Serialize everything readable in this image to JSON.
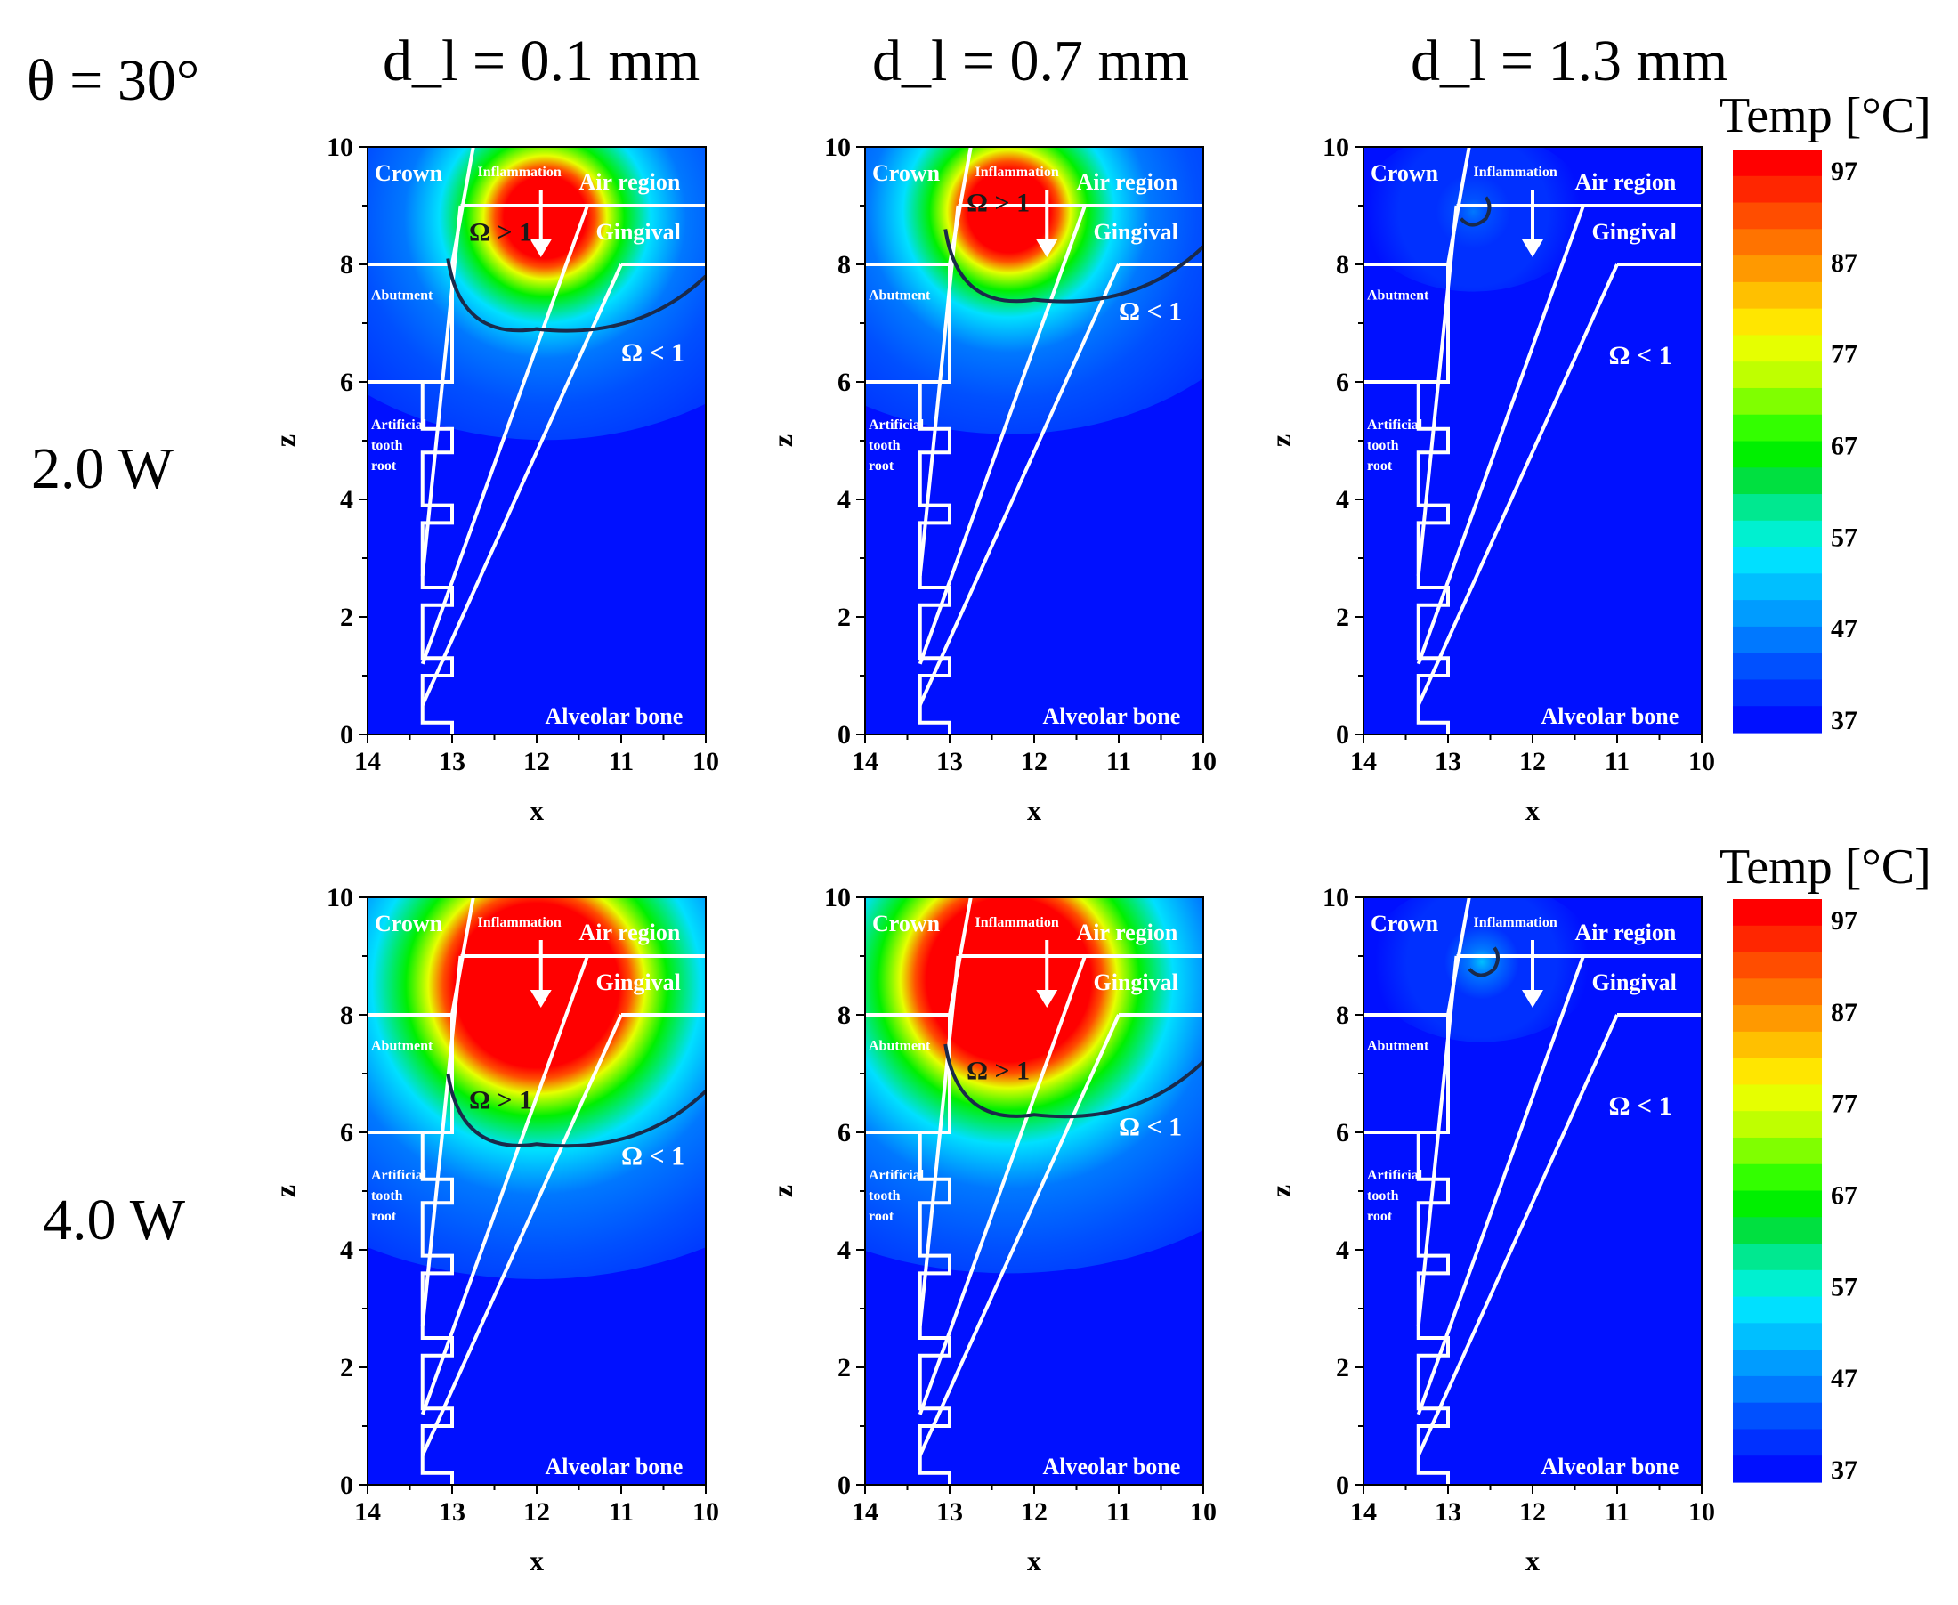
{
  "figure": {
    "angle_label": "θ = 30°",
    "columns": [
      "d_l = 0.1 mm",
      "d_l = 0.7 mm",
      "d_l = 1.3 mm"
    ],
    "rows": [
      "2.0 W",
      "4.0 W"
    ]
  },
  "labels": {
    "crown": "Crown",
    "inflammation": "Inflammation",
    "air_region": "Air region",
    "gingival": "Gingival",
    "abutment": "Abutment",
    "root_line1": "Artificial",
    "root_line2": "tooth",
    "root_line3": "root",
    "bone": "Alveolar bone",
    "omega_gt": "Ω > 1",
    "omega_lt": "Ω < 1"
  },
  "colorbar": {
    "title": "Temp [°C]",
    "ticks": [
      "97",
      "87",
      "77",
      "67",
      "57",
      "47",
      "37"
    ],
    "colors": [
      "#ff0000",
      "#ff2600",
      "#ff4d00",
      "#ff7300",
      "#ff9900",
      "#ffc000",
      "#ffe600",
      "#e6ff00",
      "#bfff00",
      "#80ff00",
      "#33ff00",
      "#00f000",
      "#00e040",
      "#00e890",
      "#00f0d0",
      "#00e0ff",
      "#00bfff",
      "#009cff",
      "#0078ff",
      "#0050ff",
      "#0030ff",
      "#0010ff"
    ]
  },
  "chart_data": {
    "type": "heatmap",
    "title": "",
    "xlabel": "x",
    "ylabel": "z",
    "xlim": [
      14,
      10
    ],
    "ylim": [
      0,
      10
    ],
    "x_ticks": [
      "14",
      "13",
      "12",
      "11",
      "10"
    ],
    "y_ticks": [
      "0",
      "2",
      "4",
      "6",
      "8",
      "10"
    ],
    "temperature_range_C": [
      37,
      97
    ],
    "panels": [
      {
        "power": "2.0 W",
        "d_l": "0.1 mm",
        "hotspot": {
          "x": 11.9,
          "z": 8.8,
          "peak_C": 97
        },
        "omega_boundary_min_z": 6.9,
        "omega_labels": [
          "Ω > 1",
          "Ω < 1"
        ]
      },
      {
        "power": "2.0 W",
        "d_l": "0.7 mm",
        "hotspot": {
          "x": 12.3,
          "z": 8.9,
          "peak_C": 97
        },
        "omega_boundary_min_z": 7.4,
        "omega_labels": [
          "Ω > 1",
          "Ω < 1"
        ]
      },
      {
        "power": "2.0 W",
        "d_l": "1.3 mm",
        "hotspot": {
          "x": 12.7,
          "z": 8.9,
          "peak_C": 45
        },
        "omega_boundary_min_z": null,
        "omega_labels": [
          "Ω < 1"
        ]
      },
      {
        "power": "4.0 W",
        "d_l": "0.1 mm",
        "hotspot": {
          "x": 12.0,
          "z": 8.5,
          "peak_C": 97
        },
        "omega_boundary_min_z": 5.8,
        "omega_labels": [
          "Ω > 1",
          "Ω < 1"
        ]
      },
      {
        "power": "4.0 W",
        "d_l": "0.7 mm",
        "hotspot": {
          "x": 12.3,
          "z": 8.6,
          "peak_C": 97
        },
        "omega_boundary_min_z": 6.3,
        "omega_labels": [
          "Ω > 1",
          "Ω < 1"
        ]
      },
      {
        "power": "4.0 W",
        "d_l": "1.3 mm",
        "hotspot": {
          "x": 12.6,
          "z": 8.9,
          "peak_C": 50
        },
        "omega_boundary_min_z": null,
        "omega_labels": [
          "Ω < 1"
        ]
      }
    ]
  }
}
